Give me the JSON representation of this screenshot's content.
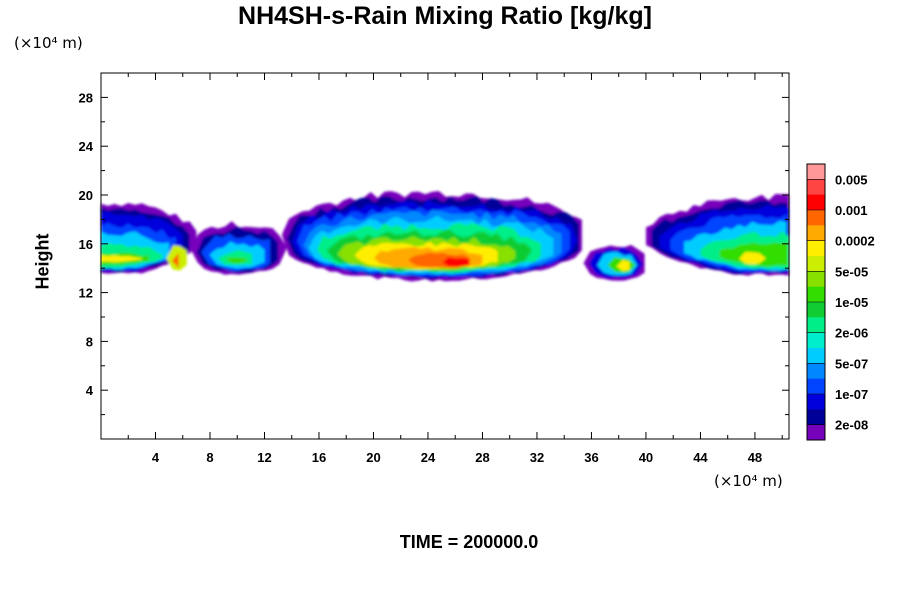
{
  "chart_data": {
    "type": "heatmap",
    "title": "NH4SH-s-Rain Mixing Ratio [kg/kg]",
    "xlabel": "",
    "ylabel": "Height",
    "x_unit": "(×10⁴ m)",
    "y_unit": "(×10⁴ m)",
    "xlim": [
      0,
      50.5
    ],
    "ylim": [
      0,
      30
    ],
    "x_ticks": [
      4,
      8,
      12,
      16,
      20,
      24,
      28,
      32,
      36,
      40,
      44,
      48
    ],
    "y_ticks": [
      4,
      8,
      12,
      16,
      20,
      24,
      28
    ],
    "colorbar": {
      "labels": [
        "0.005",
        "0.001",
        "0.0002",
        "5e-05",
        "1e-05",
        "2e-06",
        "5e-07",
        "1e-07",
        "2e-08"
      ],
      "colors": [
        "#ff9999",
        "#ff4444",
        "#ff0000",
        "#ff6600",
        "#ffaa00",
        "#ffee00",
        "#ccee00",
        "#88e000",
        "#33dd00",
        "#11cc33",
        "#00ee88",
        "#00eecc",
        "#00ccff",
        "#0088ff",
        "#0044ff",
        "#0000dd",
        "#000099",
        "#7700bb"
      ]
    },
    "regions": [
      {
        "x": [
          0,
          7
        ],
        "y_bottom": 13.6,
        "y_top": 19.3,
        "peak": "5e-05"
      },
      {
        "x": [
          7.5,
          13.5
        ],
        "y_bottom": 13.5,
        "y_top": 17.5,
        "peak": "1e-05"
      },
      {
        "x": [
          13.5,
          35.5
        ],
        "y_bottom": 13.0,
        "y_top": 20.0,
        "peak": "0.001"
      },
      {
        "x": [
          36,
          40
        ],
        "y_bottom": 13.0,
        "y_top": 16.0,
        "peak": "0.0002"
      },
      {
        "x": [
          40,
          50.5
        ],
        "y_bottom": 13.5,
        "y_top": 19.8,
        "peak": "5e-05"
      }
    ]
  },
  "footer": {
    "time_label": "TIME = 200000.0"
  }
}
